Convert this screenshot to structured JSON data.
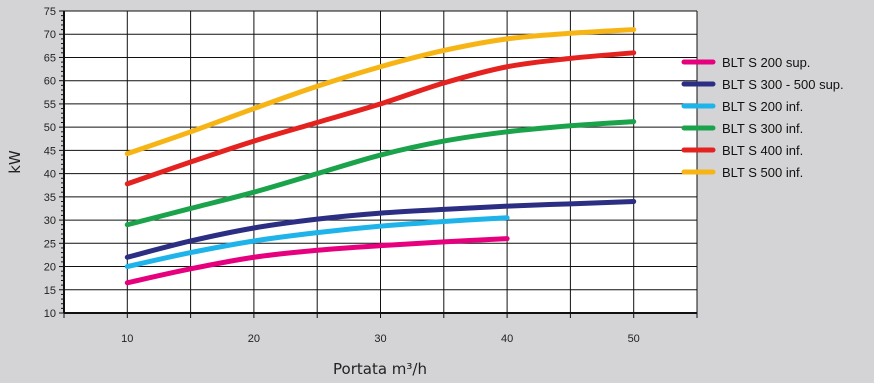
{
  "chart_data": {
    "type": "line",
    "title": "",
    "xlabel": "Portata m³/h",
    "ylabel": "kW",
    "xlim": [
      5,
      55
    ],
    "ylim": [
      10,
      75
    ],
    "x_ticks": [
      10,
      20,
      30,
      40,
      50
    ],
    "x_tick_labels": [
      "10",
      "20",
      "30",
      "40",
      "50"
    ],
    "y_ticks": [
      10,
      15,
      20,
      25,
      30,
      35,
      40,
      45,
      50,
      55,
      60,
      65,
      70,
      75
    ],
    "y_tick_labels": [
      "10",
      "15",
      "20",
      "25",
      "30",
      "35",
      "40",
      "45",
      "50",
      "55",
      "60",
      "65",
      "70",
      "75"
    ],
    "grid": true,
    "legend_position": "right",
    "series": [
      {
        "name": "BLT S 200 sup.",
        "color": "#e6007e",
        "x": [
          10,
          15,
          20,
          25,
          30,
          35,
          40
        ],
        "y": [
          16.5,
          19.5,
          22.0,
          23.5,
          24.5,
          25.3,
          26.0
        ]
      },
      {
        "name": "BLT S 300 - 500 sup.",
        "color": "#2b2e83",
        "x": [
          10,
          15,
          20,
          25,
          30,
          35,
          40,
          45,
          50
        ],
        "y": [
          22.0,
          25.5,
          28.3,
          30.2,
          31.5,
          32.3,
          33.0,
          33.5,
          34.0
        ]
      },
      {
        "name": "BLT S 200 inf.",
        "color": "#1eb4ea",
        "x": [
          10,
          15,
          20,
          25,
          30,
          35,
          40
        ],
        "y": [
          20.0,
          23.0,
          25.5,
          27.3,
          28.7,
          29.7,
          30.5
        ]
      },
      {
        "name": "BLT S 300 inf.",
        "color": "#1aa34a",
        "x": [
          10,
          15,
          20,
          25,
          30,
          35,
          40,
          45,
          50
        ],
        "y": [
          29.0,
          32.5,
          36.0,
          40.0,
          44.0,
          47.0,
          49.0,
          50.3,
          51.2
        ]
      },
      {
        "name": "BLT S 400 inf.",
        "color": "#e42320",
        "x": [
          10,
          15,
          20,
          25,
          30,
          35,
          40,
          45,
          50
        ],
        "y": [
          37.8,
          42.5,
          47.0,
          51.0,
          55.0,
          59.5,
          63.0,
          64.8,
          66.0
        ]
      },
      {
        "name": "BLT S 500 inf.",
        "color": "#f7b515",
        "x": [
          10,
          15,
          20,
          25,
          30,
          35,
          40,
          45,
          50
        ],
        "y": [
          44.3,
          49.0,
          54.0,
          58.8,
          63.0,
          66.5,
          69.0,
          70.2,
          71.0
        ]
      }
    ]
  }
}
